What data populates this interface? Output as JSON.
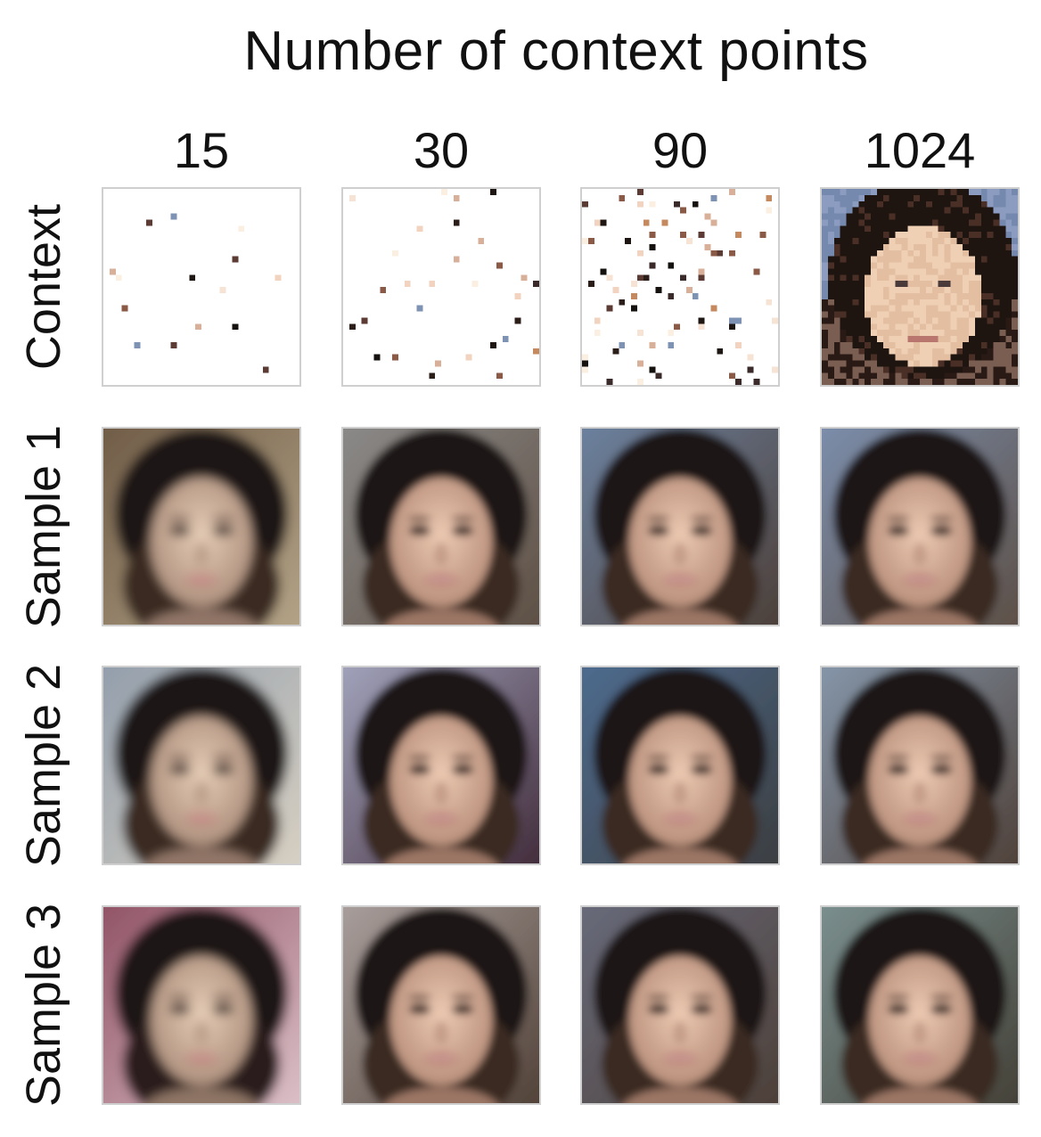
{
  "title": "Number of context points",
  "columns": [
    {
      "label": "15"
    },
    {
      "label": "30"
    },
    {
      "label": "90"
    },
    {
      "label": "1024"
    }
  ],
  "rows": [
    {
      "label": "Context"
    },
    {
      "label": "Sample 1"
    },
    {
      "label": "Sample 2"
    },
    {
      "label": "Sample 3"
    }
  ],
  "context_points": [
    15,
    30,
    90,
    1024
  ],
  "colors": {
    "hair_dark": "#1e1612",
    "skin_light": "#e9cbb4",
    "skin_mid": "#c99d86",
    "background_blue": "#7e93b4",
    "background_gray": "#a3a3a3",
    "background_brown": "#5c4637",
    "lips": "#b9766f",
    "cell_border": "#cfcfcf"
  }
}
